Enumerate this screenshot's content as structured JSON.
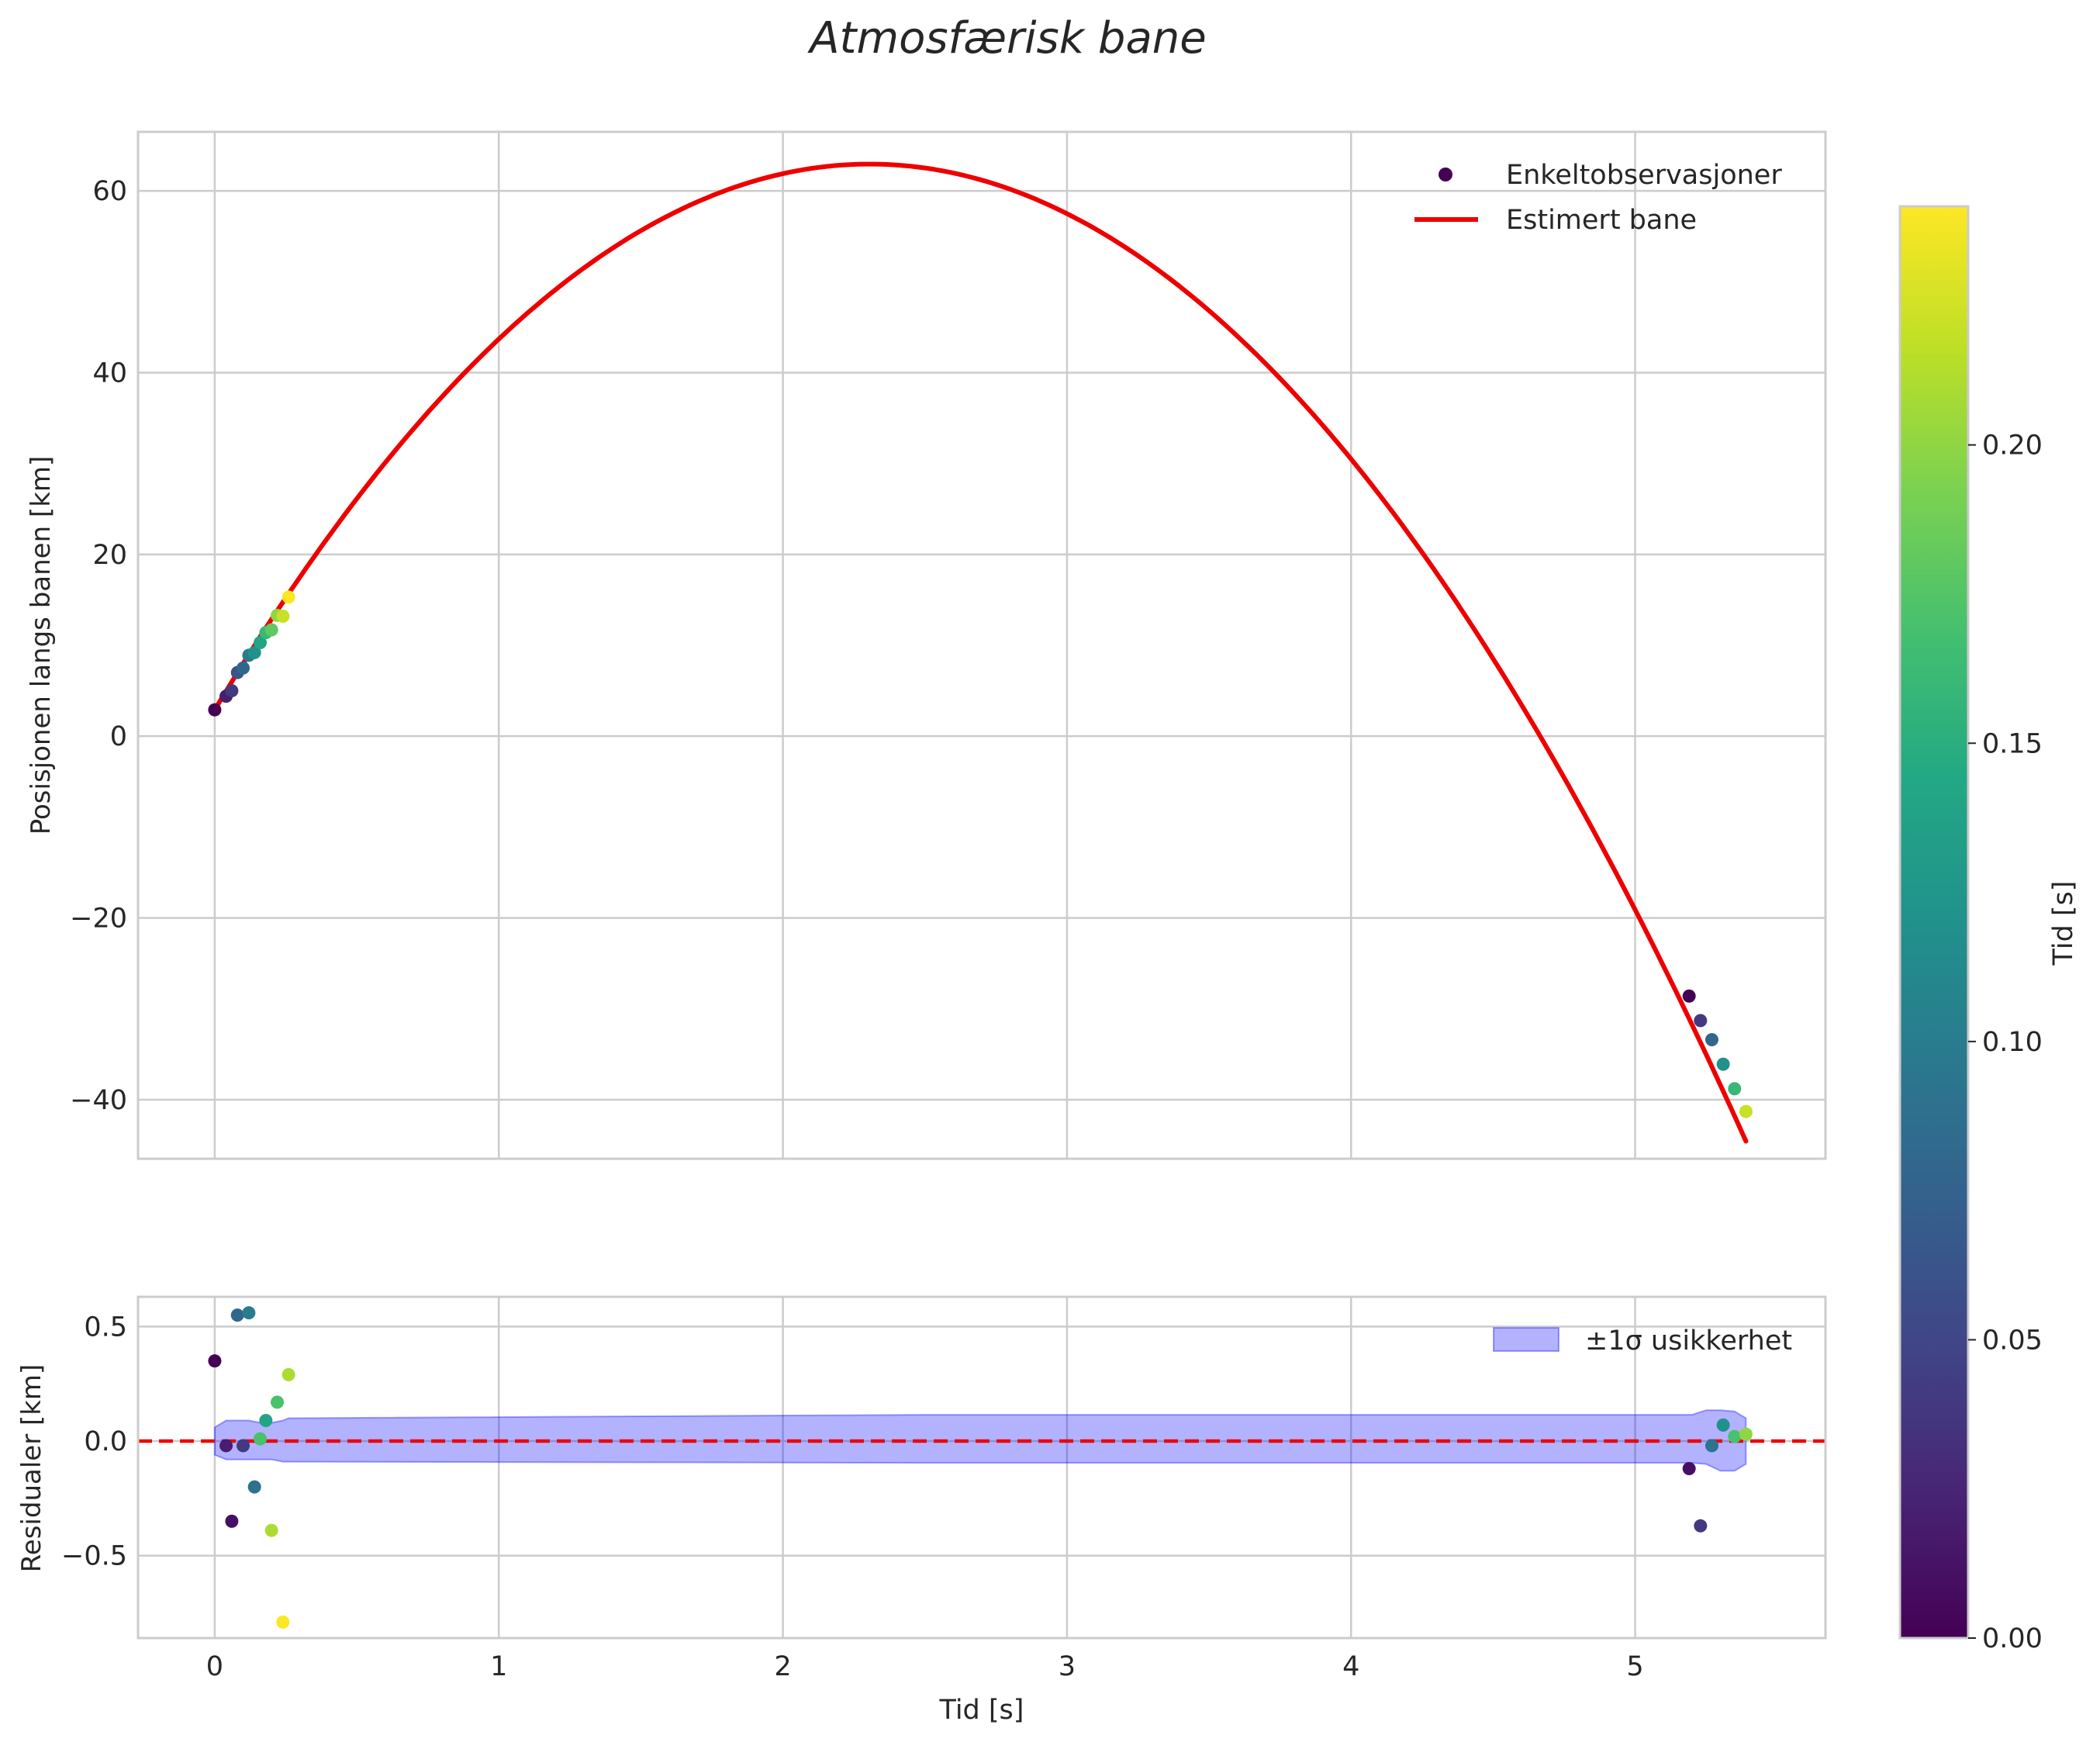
{
  "chart_data": [
    {
      "type": "scatter+line",
      "title": "Atmosfærisk bane",
      "xlabel": "",
      "ylabel": "Posisjonen langs banen [km]",
      "xlim": [
        -0.27,
        5.67
      ],
      "ylim": [
        -46.5,
        66.5
      ],
      "x_ticks": [
        0,
        1,
        2,
        3,
        4,
        5
      ],
      "y_ticks": [
        -40,
        -20,
        0,
        20,
        40,
        60
      ],
      "y_tick_labels": [
        "−40",
        "−20",
        "0",
        "20",
        "40",
        "60"
      ],
      "grid": true,
      "legend_position": "top-right",
      "legend": [
        "Enkeltobservasjoner",
        "Estimert bane"
      ],
      "line_color": "#ee0000",
      "curve": {
        "name": "Estimert bane",
        "model": "quadratic",
        "a": -11.3,
        "b": 52.1,
        "c": 2.9,
        "x_range": [
          0,
          5.39
        ]
      },
      "series": [
        {
          "name": "Enkeltobservasjoner",
          "colormap": "viridis",
          "x": [
            0.0,
            0.04,
            0.06,
            0.08,
            0.1,
            0.12,
            0.14,
            0.16,
            0.18,
            0.2,
            0.22,
            0.24,
            0.26,
            5.19,
            5.23,
            5.27,
            5.31,
            5.35,
            5.39
          ],
          "y": [
            2.9,
            4.4,
            5.0,
            7.0,
            7.5,
            8.9,
            9.2,
            10.3,
            11.4,
            11.7,
            13.3,
            13.2,
            15.3,
            -28.6,
            -31.3,
            -33.4,
            -36.1,
            -38.8,
            -41.3
          ],
          "color_value": [
            0.0,
            0.02,
            0.04,
            0.06,
            0.08,
            0.1,
            0.12,
            0.14,
            0.16,
            0.18,
            0.2,
            0.22,
            0.24,
            0.0,
            0.04,
            0.08,
            0.12,
            0.16,
            0.22
          ]
        }
      ]
    },
    {
      "type": "scatter",
      "xlabel": "Tid [s]",
      "ylabel": "Residualer [km]",
      "xlim": [
        -0.27,
        5.67
      ],
      "ylim": [
        -0.86,
        0.63
      ],
      "x_ticks": [
        0,
        1,
        2,
        3,
        4,
        5
      ],
      "y_ticks": [
        -0.5,
        0.0,
        0.5
      ],
      "y_tick_labels": [
        "−0.5",
        "0.0",
        "0.5"
      ],
      "grid": true,
      "legend_position": "top-right",
      "legend": [
        "±1σ usikkerhet"
      ],
      "reference_line": {
        "y": 0,
        "color": "#ee0000",
        "style": "dashed"
      },
      "band": {
        "name": "±1σ usikkerhet",
        "color": "#0000ff",
        "x": [
          0.0,
          0.04,
          0.08,
          0.12,
          0.16,
          0.2,
          0.24,
          0.26,
          2.5,
          5.16,
          5.2,
          5.25,
          5.3,
          5.35,
          5.39
        ],
        "upper": [
          0.06,
          0.09,
          0.09,
          0.09,
          0.08,
          0.08,
          0.09,
          0.1,
          0.115,
          0.115,
          0.115,
          0.135,
          0.135,
          0.13,
          0.1
        ],
        "lower": [
          -0.06,
          -0.08,
          -0.08,
          -0.08,
          -0.08,
          -0.08,
          -0.09,
          -0.09,
          -0.095,
          -0.095,
          -0.095,
          -0.1,
          -0.13,
          -0.13,
          -0.1
        ]
      },
      "series": [
        {
          "name": "Residualer",
          "colormap": "viridis",
          "x": [
            0.0,
            0.04,
            0.06,
            0.08,
            0.1,
            0.12,
            0.14,
            0.16,
            0.18,
            0.2,
            0.22,
            0.24,
            0.26,
            5.19,
            5.23,
            5.27,
            5.31,
            5.35,
            5.39
          ],
          "y": [
            0.35,
            -0.02,
            -0.35,
            0.55,
            -0.02,
            0.56,
            -0.2,
            0.01,
            0.09,
            -0.39,
            0.17,
            -0.79,
            0.29,
            -0.12,
            -0.37,
            -0.02,
            0.07,
            0.02,
            0.03
          ],
          "color_value": [
            0.0,
            0.02,
            0.01,
            0.08,
            0.04,
            0.1,
            0.09,
            0.17,
            0.14,
            0.21,
            0.17,
            0.24,
            0.21,
            0.01,
            0.04,
            0.09,
            0.12,
            0.17,
            0.2
          ]
        }
      ]
    },
    {
      "type": "colorbar",
      "colormap": "viridis",
      "label": "Tid [s]",
      "range": [
        0.0,
        0.24
      ],
      "ticks": [
        0.0,
        0.05,
        0.1,
        0.15,
        0.2
      ],
      "tick_labels": [
        "0.00",
        "0.05",
        "0.10",
        "0.15",
        "0.20"
      ]
    }
  ]
}
